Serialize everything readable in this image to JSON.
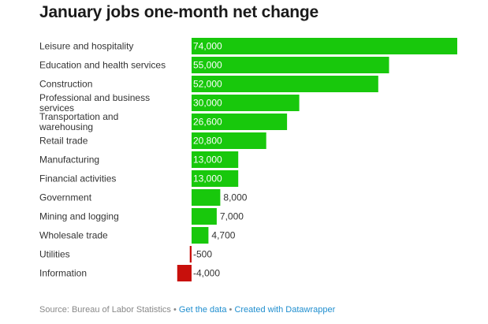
{
  "title": "January jobs one-month net change",
  "footer": {
    "source": "Source: Bureau of Labor Statistics",
    "separator": "•",
    "get_data": "Get the data",
    "created_with": "Created with Datawrapper"
  },
  "colors": {
    "positive": "#18c80c",
    "negative": "#c8100c"
  },
  "chart_data": {
    "type": "bar",
    "orientation": "horizontal",
    "categories": [
      "Leisure and hospitality",
      "Education and health services",
      "Construction",
      "Professional and business services",
      "Transportation and warehousing",
      "Retail trade",
      "Manufacturing",
      "Financial activities",
      "Government",
      "Mining and logging",
      "Wholesale trade",
      "Utilities",
      "Information"
    ],
    "category_lines": [
      [
        "Leisure and hospitality"
      ],
      [
        "Education and health services"
      ],
      [
        "Construction"
      ],
      [
        "Professional and business",
        "services"
      ],
      [
        "Transportation and",
        "warehousing"
      ],
      [
        "Retail trade"
      ],
      [
        "Manufacturing"
      ],
      [
        "Financial activities"
      ],
      [
        "Government"
      ],
      [
        "Mining and logging"
      ],
      [
        "Wholesale trade"
      ],
      [
        "Utilities"
      ],
      [
        "Information"
      ]
    ],
    "values": [
      74000,
      55000,
      52000,
      30000,
      26600,
      20800,
      13000,
      13000,
      8000,
      7000,
      4700,
      -500,
      -4000
    ],
    "value_labels": [
      "74,000",
      "55,000",
      "52,000",
      "30,000",
      "26,600",
      "20,800",
      "13,000",
      "13,000",
      "8,000",
      "7,000",
      "4,700",
      "-500",
      "-4,000"
    ],
    "xlim": [
      -4000,
      74000
    ],
    "title": "January jobs one-month net change",
    "xlabel": "",
    "ylabel": ""
  }
}
